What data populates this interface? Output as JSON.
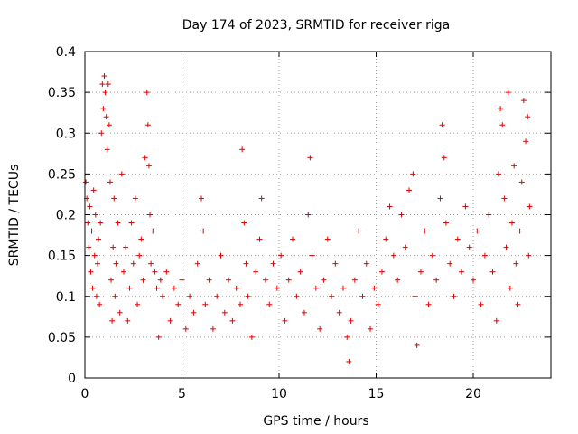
{
  "chart_data": {
    "type": "scatter",
    "title": "Day 174 of 2023, SRMTID for receiver riga",
    "xlabel": "GPS time / hours",
    "ylabel": "SRMTID / TECUs",
    "xlim": [
      0,
      24
    ],
    "ylim": [
      0,
      0.4
    ],
    "x_ticks": [
      0,
      5,
      10,
      15,
      20
    ],
    "x_tick_labels": [
      "0",
      "5",
      "10",
      "15",
      "20"
    ],
    "y_ticks": [
      0,
      0.05,
      0.1,
      0.15,
      0.2,
      0.25,
      0.3,
      0.35,
      0.4
    ],
    "y_tick_labels": [
      "0",
      "0.05",
      "0.1",
      "0.15",
      "0.2",
      "0.25",
      "0.3",
      "0.35",
      "0.4"
    ],
    "grid": true,
    "marker": "plus",
    "point_color": "#e00000",
    "x_data_range": [
      0,
      22.9
    ],
    "series": [
      {
        "name": "SRMTID",
        "points": [
          [
            0.05,
            0.24
          ],
          [
            0.1,
            0.22
          ],
          [
            0.15,
            0.19
          ],
          [
            0.2,
            0.16
          ],
          [
            0.25,
            0.21
          ],
          [
            0.3,
            0.13
          ],
          [
            0.35,
            0.18
          ],
          [
            0.4,
            0.11
          ],
          [
            0.45,
            0.23
          ],
          [
            0.5,
            0.15
          ],
          [
            0.55,
            0.2
          ],
          [
            0.6,
            0.1
          ],
          [
            0.65,
            0.14
          ],
          [
            0.7,
            0.17
          ],
          [
            0.75,
            0.09
          ],
          [
            0.8,
            0.19
          ],
          [
            0.85,
            0.3
          ],
          [
            0.9,
            0.36
          ],
          [
            0.95,
            0.33
          ],
          [
            1.0,
            0.37
          ],
          [
            1.05,
            0.35
          ],
          [
            1.1,
            0.32
          ],
          [
            1.15,
            0.28
          ],
          [
            1.2,
            0.36
          ],
          [
            1.25,
            0.31
          ],
          [
            1.3,
            0.24
          ],
          [
            1.35,
            0.12
          ],
          [
            1.4,
            0.07
          ],
          [
            1.45,
            0.16
          ],
          [
            1.5,
            0.22
          ],
          [
            1.55,
            0.1
          ],
          [
            1.6,
            0.14
          ],
          [
            1.7,
            0.19
          ],
          [
            1.8,
            0.08
          ],
          [
            1.9,
            0.25
          ],
          [
            2.0,
            0.13
          ],
          [
            2.1,
            0.16
          ],
          [
            2.2,
            0.07
          ],
          [
            2.3,
            0.11
          ],
          [
            2.4,
            0.19
          ],
          [
            2.5,
            0.14
          ],
          [
            2.6,
            0.22
          ],
          [
            2.7,
            0.09
          ],
          [
            2.8,
            0.15
          ],
          [
            2.9,
            0.17
          ],
          [
            3.0,
            0.12
          ],
          [
            3.1,
            0.27
          ],
          [
            3.2,
            0.35
          ],
          [
            3.25,
            0.31
          ],
          [
            3.3,
            0.26
          ],
          [
            3.35,
            0.2
          ],
          [
            3.4,
            0.14
          ],
          [
            3.5,
            0.18
          ],
          [
            3.6,
            0.13
          ],
          [
            3.7,
            0.11
          ],
          [
            3.8,
            0.05
          ],
          [
            3.9,
            0.12
          ],
          [
            4.0,
            0.1
          ],
          [
            4.2,
            0.13
          ],
          [
            4.4,
            0.07
          ],
          [
            4.6,
            0.11
          ],
          [
            4.8,
            0.09
          ],
          [
            5.0,
            0.12
          ],
          [
            5.2,
            0.06
          ],
          [
            5.4,
            0.1
          ],
          [
            5.6,
            0.08
          ],
          [
            5.8,
            0.14
          ],
          [
            6.0,
            0.22
          ],
          [
            6.1,
            0.18
          ],
          [
            6.2,
            0.09
          ],
          [
            6.4,
            0.12
          ],
          [
            6.6,
            0.06
          ],
          [
            6.8,
            0.1
          ],
          [
            7.0,
            0.15
          ],
          [
            7.2,
            0.08
          ],
          [
            7.4,
            0.12
          ],
          [
            7.6,
            0.07
          ],
          [
            7.8,
            0.11
          ],
          [
            8.0,
            0.09
          ],
          [
            8.1,
            0.28
          ],
          [
            8.2,
            0.19
          ],
          [
            8.3,
            0.14
          ],
          [
            8.4,
            0.1
          ],
          [
            8.6,
            0.05
          ],
          [
            8.8,
            0.13
          ],
          [
            9.0,
            0.17
          ],
          [
            9.1,
            0.22
          ],
          [
            9.3,
            0.12
          ],
          [
            9.5,
            0.09
          ],
          [
            9.7,
            0.14
          ],
          [
            9.9,
            0.11
          ],
          [
            10.1,
            0.15
          ],
          [
            10.3,
            0.07
          ],
          [
            10.5,
            0.12
          ],
          [
            10.7,
            0.17
          ],
          [
            10.9,
            0.1
          ],
          [
            11.1,
            0.13
          ],
          [
            11.3,
            0.08
          ],
          [
            11.5,
            0.2
          ],
          [
            11.6,
            0.27
          ],
          [
            11.7,
            0.15
          ],
          [
            11.9,
            0.11
          ],
          [
            12.1,
            0.06
          ],
          [
            12.3,
            0.12
          ],
          [
            12.5,
            0.17
          ],
          [
            12.7,
            0.1
          ],
          [
            12.9,
            0.14
          ],
          [
            13.1,
            0.08
          ],
          [
            13.3,
            0.11
          ],
          [
            13.5,
            0.05
          ],
          [
            13.6,
            0.02
          ],
          [
            13.7,
            0.07
          ],
          [
            13.9,
            0.12
          ],
          [
            14.1,
            0.18
          ],
          [
            14.3,
            0.1
          ],
          [
            14.5,
            0.14
          ],
          [
            14.7,
            0.06
          ],
          [
            14.9,
            0.11
          ],
          [
            15.1,
            0.09
          ],
          [
            15.3,
            0.13
          ],
          [
            15.5,
            0.17
          ],
          [
            15.7,
            0.21
          ],
          [
            15.9,
            0.15
          ],
          [
            16.1,
            0.12
          ],
          [
            16.3,
            0.2
          ],
          [
            16.5,
            0.16
          ],
          [
            16.7,
            0.23
          ],
          [
            16.9,
            0.25
          ],
          [
            17.0,
            0.1
          ],
          [
            17.1,
            0.04
          ],
          [
            17.3,
            0.13
          ],
          [
            17.5,
            0.18
          ],
          [
            17.7,
            0.09
          ],
          [
            17.9,
            0.15
          ],
          [
            18.1,
            0.12
          ],
          [
            18.3,
            0.22
          ],
          [
            18.4,
            0.31
          ],
          [
            18.5,
            0.27
          ],
          [
            18.6,
            0.19
          ],
          [
            18.8,
            0.14
          ],
          [
            19.0,
            0.1
          ],
          [
            19.2,
            0.17
          ],
          [
            19.4,
            0.13
          ],
          [
            19.6,
            0.21
          ],
          [
            19.8,
            0.16
          ],
          [
            20.0,
            0.12
          ],
          [
            20.2,
            0.18
          ],
          [
            20.4,
            0.09
          ],
          [
            20.6,
            0.15
          ],
          [
            20.8,
            0.2
          ],
          [
            21.0,
            0.13
          ],
          [
            21.2,
            0.07
          ],
          [
            21.3,
            0.25
          ],
          [
            21.4,
            0.33
          ],
          [
            21.5,
            0.31
          ],
          [
            21.6,
            0.22
          ],
          [
            21.7,
            0.16
          ],
          [
            21.8,
            0.35
          ],
          [
            21.9,
            0.11
          ],
          [
            22.0,
            0.19
          ],
          [
            22.1,
            0.26
          ],
          [
            22.2,
            0.14
          ],
          [
            22.3,
            0.09
          ],
          [
            22.4,
            0.18
          ],
          [
            22.5,
            0.24
          ],
          [
            22.6,
            0.34
          ],
          [
            22.7,
            0.29
          ],
          [
            22.8,
            0.32
          ],
          [
            22.85,
            0.15
          ],
          [
            22.9,
            0.21
          ]
        ]
      }
    ]
  }
}
